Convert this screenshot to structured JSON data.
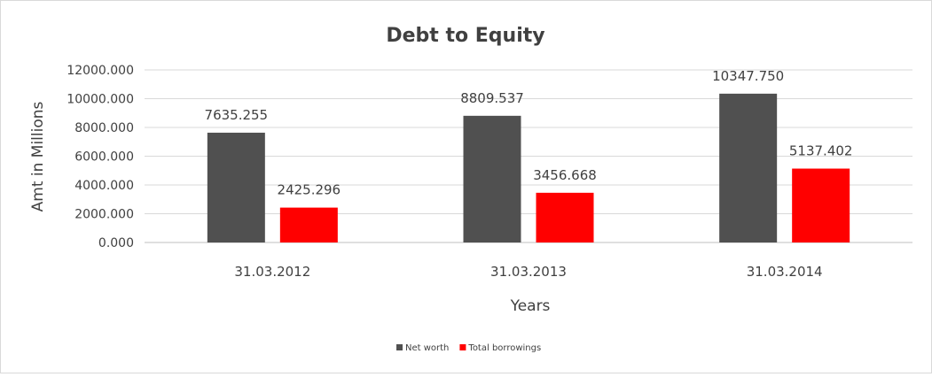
{
  "chart_data": {
    "type": "bar",
    "title": "Debt to Equity",
    "xlabel": "Years",
    "ylabel": "Amt in Millions",
    "categories": [
      "31.03.2012",
      "31.03.2013",
      "31.03.2014"
    ],
    "series": [
      {
        "name": "Net worth",
        "color": "#505050",
        "values": [
          7635.255,
          8809.537,
          10347.75
        ],
        "labels": [
          "7635.255",
          "8809.537",
          "10347.750"
        ]
      },
      {
        "name": "Total borrowings",
        "color": "#ff0000",
        "values": [
          2425.296,
          3456.668,
          5137.402
        ],
        "labels": [
          "2425.296",
          "3456.668",
          "5137.402"
        ]
      }
    ],
    "ylim": [
      0,
      12000
    ],
    "yticks": [
      "0.000",
      "2000.000",
      "4000.000",
      "6000.000",
      "8000.000",
      "10000.000",
      "12000.000"
    ],
    "grid": true,
    "legend_position": "bottom"
  }
}
